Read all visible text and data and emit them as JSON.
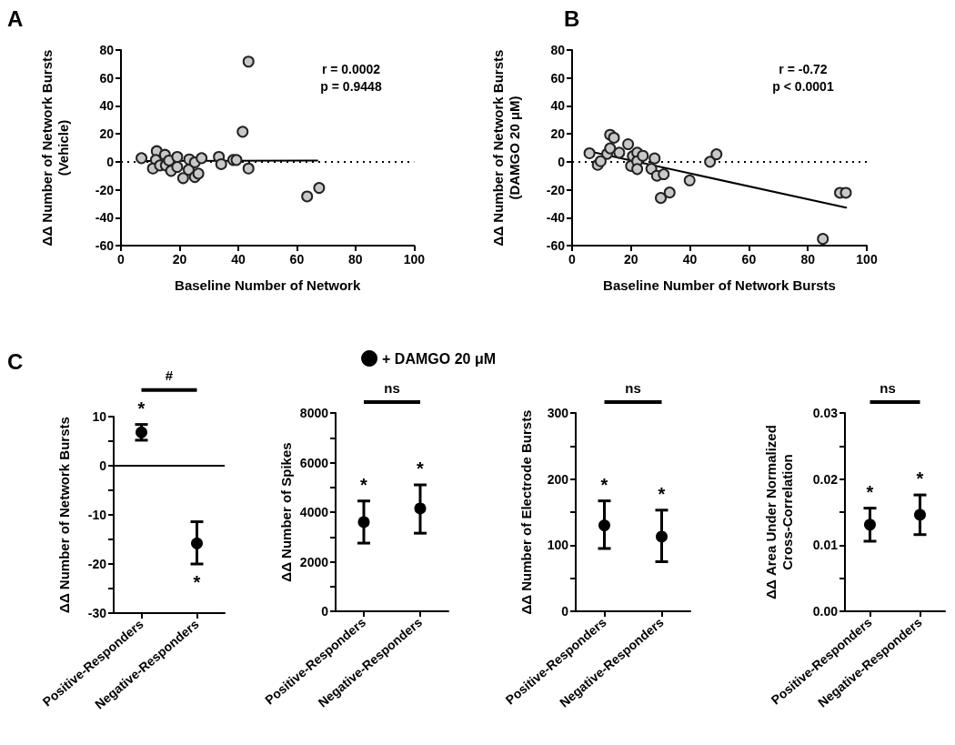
{
  "chart_data": [
    {
      "type": "scatter",
      "title": "A",
      "xlabel": "Baseline Number of Network",
      "ylabel": "ΔΔ Number of Network Bursts\n(Vehicle)",
      "xlim": [
        0,
        100
      ],
      "ylim": [
        -60,
        80
      ],
      "xticks": [
        0,
        20,
        40,
        60,
        80,
        100
      ],
      "yticks": [
        -60,
        -40,
        -20,
        0,
        20,
        40,
        60,
        80
      ],
      "marker": "circle",
      "grid": false,
      "legend": false,
      "annotations": [
        "r = 0.0002",
        "p = 0.9448"
      ],
      "ref_lines": [
        {
          "axis": "y",
          "value": 0,
          "line_style": "dotted",
          "color": "#000000"
        }
      ],
      "series": [
        {
          "color": "#c8c8c8",
          "x": [
            7,
            12.2,
            11.9,
            10.9,
            13.3,
            15,
            15.3,
            16.4,
            17.1,
            19.2,
            19.2,
            21.2,
            23.3,
            23.1,
            25.2,
            25.2,
            26.4,
            27.5,
            33.4,
            34.2,
            38.3,
            39.4,
            41.5,
            43.5,
            43.5,
            63.5,
            67.6
          ],
          "values": [
            2.6,
            7.6,
            1.3,
            -4.8,
            -2.6,
            5,
            -2.6,
            0.9,
            -6.5,
            3.5,
            -3.7,
            -11.7,
            1.7,
            -5.7,
            -0.4,
            -10.9,
            -8.5,
            2.6,
            3.5,
            -1.7,
            1.3,
            1.3,
            21.5,
            71.7,
            -4.8,
            -24.8,
            -18.7
          ]
        },
        {
          "type": "line",
          "marker": "none",
          "color": "#000000",
          "x": [
            7,
            67
          ],
          "values": [
            0.6,
            0.9
          ]
        }
      ]
    },
    {
      "type": "scatter",
      "title": "B",
      "xlabel": "Baseline Number of Network Bursts",
      "ylabel": "ΔΔ Number of Network Bursts\n(DAMGO 20 μM)",
      "xlim": [
        0,
        100
      ],
      "ylim": [
        -60,
        80
      ],
      "xticks": [
        0,
        20,
        40,
        60,
        80,
        100
      ],
      "yticks": [
        -60,
        -40,
        -20,
        0,
        20,
        40,
        60,
        80
      ],
      "marker": "circle",
      "grid": false,
      "legend": false,
      "annotations": [
        "r = -0.72",
        "p < 0.0001"
      ],
      "ref_lines": [
        {
          "axis": "y",
          "value": 0,
          "line_style": "dotted",
          "color": "#000000"
        }
      ],
      "series": [
        {
          "color": "#c8c8c8",
          "x": [
            5.9,
            8.7,
            9.7,
            11.9,
            12.9,
            12.9,
            14.2,
            16,
            19,
            20,
            20.6,
            22.1,
            22.1,
            22.1,
            24,
            26.9,
            28,
            28.8,
            31.1,
            30.1,
            33.1,
            39.9,
            46.8,
            49,
            85.1,
            90.9,
            92.9
          ],
          "values": [
            6.1,
            -2.2,
            0.4,
            5.7,
            9.6,
            19.3,
            17.2,
            6.5,
            12.6,
            -3,
            4.1,
            6.5,
            0.4,
            -5.2,
            4.3,
            -5,
            2.4,
            -10,
            -8.9,
            -25.9,
            -22,
            -13.3,
            0,
            5.4,
            -55.2,
            -22.2,
            -22.2
          ]
        },
        {
          "type": "line",
          "marker": "none",
          "color": "#000000",
          "x": [
            6,
            93
          ],
          "values": [
            7.4,
            -32.8
          ]
        }
      ]
    },
    {
      "type": "scatter",
      "title": "C",
      "ylabel": "ΔΔ Number of Network Bursts",
      "categories": [
        "Positive-Responders",
        "Negative-Responders"
      ],
      "ylim": [
        -30,
        10
      ],
      "yticks": [
        -30,
        {
          "value": -25,
          "label": null
        },
        -20,
        {
          "value": -15,
          "label": null
        },
        -10,
        {
          "value": -5,
          "label": null
        },
        0,
        {
          "value": 5,
          "label": null
        },
        10
      ],
      "marker": "circle",
      "grid": false,
      "legend": false,
      "annotations": [
        "#",
        "*",
        "*"
      ],
      "ref_lines": [
        {
          "axis": "y",
          "value": 0,
          "line_style": "solid",
          "color": "#000000"
        }
      ],
      "series": [
        {
          "color": "#000000",
          "values": [
            6.8,
            -15.8
          ],
          "errors": [
            [
              5.2,
              8.4
            ],
            [
              -20,
              -11.4
            ]
          ]
        }
      ]
    },
    {
      "type": "scatter",
      "ylabel": "ΔΔ Number of Spikes",
      "categories": [
        "Positive-Responders",
        "Negative-Responders"
      ],
      "ylim": [
        0,
        8000
      ],
      "yticks": [
        0,
        {
          "value": 1000,
          "label": null
        },
        2000,
        {
          "value": 3000,
          "label": null
        },
        4000,
        {
          "value": 5000,
          "label": null
        },
        6000,
        {
          "value": 7000,
          "label": null
        },
        8000
      ],
      "marker": "circle",
      "grid": false,
      "legend": "top",
      "annotations": [
        "ns",
        "*",
        "*"
      ],
      "series": [
        {
          "name": "+ DAMGO 20 μM",
          "color": "#000000",
          "values": [
            3600,
            4150
          ],
          "errors": [
            [
              2750,
              4450
            ],
            [
              3150,
              5100
            ]
          ]
        }
      ]
    },
    {
      "type": "scatter",
      "ylabel": "ΔΔ Number of Electrode Bursts",
      "categories": [
        "Positive-Responders",
        "Negative-Responders"
      ],
      "ylim": [
        0,
        300
      ],
      "yticks": [
        0,
        {
          "value": 50,
          "label": null
        },
        100,
        {
          "value": 150,
          "label": null
        },
        200,
        {
          "value": 250,
          "label": null
        },
        300
      ],
      "marker": "circle",
      "grid": false,
      "legend": false,
      "annotations": [
        "ns",
        "*",
        "*"
      ],
      "series": [
        {
          "color": "#000000",
          "values": [
            130,
            113
          ],
          "errors": [
            [
              95,
              167
            ],
            [
              75,
              153
            ]
          ]
        }
      ]
    },
    {
      "type": "scatter",
      "ylabel": "ΔΔ Area Under Normalized\nCross-Correlation",
      "categories": [
        "Positive-Responders",
        "Negative-Responders"
      ],
      "ylim": [
        0,
        0.03
      ],
      "yticks": [
        {
          "value": 0,
          "label": "0.00"
        },
        {
          "value": 0.005,
          "label": null
        },
        0.01,
        {
          "value": 0.015,
          "label": null
        },
        0.02,
        {
          "value": 0.025,
          "label": null
        },
        0.03
      ],
      "marker": "circle",
      "grid": false,
      "legend": false,
      "annotations": [
        "ns",
        "*",
        "*"
      ],
      "series": [
        {
          "color": "#000000",
          "values": [
            0.0131,
            0.0146
          ],
          "errors": [
            [
              0.0106,
              0.0156
            ],
            [
              0.0116,
              0.0176
            ]
          ]
        }
      ]
    }
  ]
}
